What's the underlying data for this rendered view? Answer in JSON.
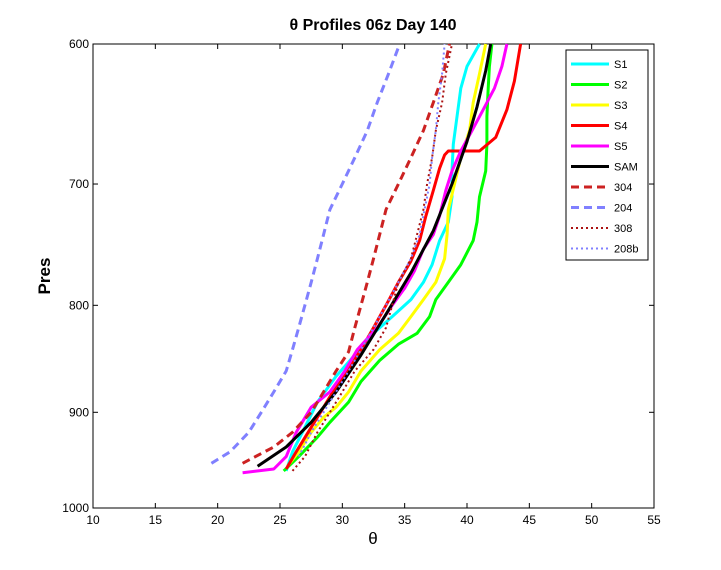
{
  "chart_data": {
    "type": "line",
    "title": "θ Profiles 06z Day 140",
    "xlabel": "θ",
    "ylabel": "Pres",
    "xlim": [
      10,
      55
    ],
    "ylim": [
      600,
      1000
    ],
    "y_reversed": true,
    "y_scale": "log",
    "xticks": [
      10,
      15,
      20,
      25,
      30,
      35,
      40,
      45,
      50,
      55
    ],
    "yticks": [
      600,
      700,
      800,
      900,
      1000
    ],
    "grid": false,
    "legend_position": "top-right",
    "series": [
      {
        "name": "S1",
        "color": "#00ffff",
        "style": "solid",
        "points": [
          [
            25.5,
            960
          ],
          [
            26,
            940
          ],
          [
            27,
            915
          ],
          [
            28,
            890
          ],
          [
            29.5,
            865
          ],
          [
            31,
            845
          ],
          [
            32.5,
            825
          ],
          [
            34,
            810
          ],
          [
            35.5,
            795
          ],
          [
            36.5,
            780
          ],
          [
            37.2,
            765
          ],
          [
            37.8,
            745
          ],
          [
            38.5,
            730
          ],
          [
            38.8,
            710
          ],
          [
            38.8,
            690
          ],
          [
            38.9,
            670
          ],
          [
            39.2,
            650
          ],
          [
            39.5,
            630
          ],
          [
            40,
            615
          ],
          [
            41,
            600
          ]
        ]
      },
      {
        "name": "S2",
        "color": "#00ff00",
        "style": "solid",
        "points": [
          [
            25.3,
            960
          ],
          [
            26.5,
            945
          ],
          [
            28,
            925
          ],
          [
            29,
            910
          ],
          [
            30.5,
            890
          ],
          [
            31.5,
            870
          ],
          [
            33,
            850
          ],
          [
            34.5,
            835
          ],
          [
            36,
            825
          ],
          [
            37,
            810
          ],
          [
            37.5,
            795
          ],
          [
            38.5,
            780
          ],
          [
            39.5,
            765
          ],
          [
            40.5,
            745
          ],
          [
            40.8,
            730
          ],
          [
            41,
            710
          ],
          [
            41.5,
            690
          ],
          [
            41.6,
            670
          ],
          [
            41.6,
            650
          ],
          [
            41.7,
            630
          ],
          [
            41.8,
            615
          ],
          [
            42,
            600
          ]
        ]
      },
      {
        "name": "S3",
        "color": "#ffff00",
        "style": "solid",
        "points": [
          [
            25.6,
            955
          ],
          [
            26.5,
            940
          ],
          [
            27.5,
            920
          ],
          [
            28.5,
            905
          ],
          [
            29.5,
            895
          ],
          [
            30.5,
            880
          ],
          [
            31.5,
            860
          ],
          [
            33,
            840
          ],
          [
            34.5,
            825
          ],
          [
            35.5,
            810
          ],
          [
            36.5,
            795
          ],
          [
            37.5,
            780
          ],
          [
            38.2,
            760
          ],
          [
            38.4,
            740
          ],
          [
            38.5,
            720
          ],
          [
            39,
            700
          ],
          [
            39.5,
            680
          ],
          [
            40.2,
            660
          ],
          [
            40.5,
            640
          ],
          [
            41,
            620
          ],
          [
            41.5,
            600
          ]
        ]
      },
      {
        "name": "S4",
        "color": "#ff0000",
        "style": "solid",
        "points": [
          [
            25.5,
            958
          ],
          [
            26.3,
            940
          ],
          [
            27.5,
            915
          ],
          [
            28.5,
            895
          ],
          [
            29.5,
            875
          ],
          [
            30.5,
            858
          ],
          [
            31.5,
            840
          ],
          [
            32.5,
            820
          ],
          [
            33.5,
            800
          ],
          [
            34.5,
            780
          ],
          [
            35.5,
            762
          ],
          [
            36.2,
            745
          ],
          [
            36.7,
            725
          ],
          [
            37.3,
            705
          ],
          [
            37.8,
            688
          ],
          [
            38.2,
            678
          ],
          [
            38.5,
            675
          ],
          [
            41,
            675
          ],
          [
            42.3,
            665
          ],
          [
            43.2,
            645
          ],
          [
            43.8,
            625
          ],
          [
            44.3,
            600
          ]
        ]
      },
      {
        "name": "S5",
        "color": "#ff00ff",
        "style": "solid",
        "points": [
          [
            22,
            962
          ],
          [
            24.5,
            958
          ],
          [
            25.5,
            945
          ],
          [
            26.3,
            920
          ],
          [
            27.5,
            895
          ],
          [
            29,
            880
          ],
          [
            30.2,
            860
          ],
          [
            31.2,
            840
          ],
          [
            32.8,
            820
          ],
          [
            34,
            800
          ],
          [
            35,
            785
          ],
          [
            35.8,
            770
          ],
          [
            36.5,
            752
          ],
          [
            37.3,
            740
          ],
          [
            37.8,
            725
          ],
          [
            38.3,
            705
          ],
          [
            38.8,
            690
          ],
          [
            39.5,
            675
          ],
          [
            40.4,
            660
          ],
          [
            41.3,
            645
          ],
          [
            42.2,
            630
          ],
          [
            42.8,
            615
          ],
          [
            43.2,
            600
          ]
        ]
      },
      {
        "name": "SAM",
        "color": "#000000",
        "style": "solid",
        "points": [
          [
            23.2,
            955
          ],
          [
            25.5,
            935
          ],
          [
            27.5,
            910
          ],
          [
            29.5,
            880
          ],
          [
            31.5,
            845
          ],
          [
            33.5,
            808
          ],
          [
            35.5,
            772
          ],
          [
            37.3,
            737
          ],
          [
            38.8,
            700
          ],
          [
            40,
            668
          ],
          [
            40.8,
            643
          ],
          [
            41.5,
            618
          ],
          [
            41.9,
            600
          ]
        ]
      },
      {
        "name": "304",
        "color": "#cc2222",
        "style": "dashed",
        "points": [
          [
            22,
            952
          ],
          [
            24.5,
            935
          ],
          [
            26,
            920
          ],
          [
            27.5,
            900
          ],
          [
            28.5,
            880
          ],
          [
            29.5,
            860
          ],
          [
            30.5,
            842
          ],
          [
            31,
            820
          ],
          [
            31.5,
            800
          ],
          [
            32,
            780
          ],
          [
            32.5,
            760
          ],
          [
            33,
            740
          ],
          [
            33.5,
            720
          ],
          [
            34.5,
            700
          ],
          [
            35.5,
            680
          ],
          [
            36.5,
            660
          ],
          [
            37.3,
            640
          ],
          [
            38.1,
            620
          ],
          [
            38.6,
            600
          ]
        ]
      },
      {
        "name": "204",
        "color": "#8080ff",
        "style": "dashed",
        "points": [
          [
            19.5,
            952
          ],
          [
            21,
            940
          ],
          [
            22.5,
            920
          ],
          [
            23.5,
            900
          ],
          [
            24.5,
            880
          ],
          [
            25.5,
            860
          ],
          [
            26,
            840
          ],
          [
            26.5,
            820
          ],
          [
            27,
            800
          ],
          [
            27.5,
            780
          ],
          [
            28,
            760
          ],
          [
            28.5,
            740
          ],
          [
            29,
            720
          ],
          [
            30,
            700
          ],
          [
            31,
            680
          ],
          [
            32,
            660
          ],
          [
            32.8,
            640
          ],
          [
            33.7,
            620
          ],
          [
            34.6,
            600
          ]
        ]
      },
      {
        "name": "308",
        "color": "#aa1111",
        "style": "dotted",
        "points": [
          [
            26,
            960
          ],
          [
            27,
            945
          ],
          [
            28,
            920
          ],
          [
            29,
            900
          ],
          [
            30,
            880
          ],
          [
            31,
            860
          ],
          [
            32.5,
            840
          ],
          [
            33.5,
            820
          ],
          [
            34,
            800
          ],
          [
            34.5,
            780
          ],
          [
            35.5,
            760
          ],
          [
            36,
            740
          ],
          [
            36.5,
            720
          ],
          [
            36.8,
            700
          ],
          [
            37.2,
            680
          ],
          [
            37.5,
            660
          ],
          [
            38,
            640
          ],
          [
            38.3,
            620
          ],
          [
            38.8,
            600
          ]
        ]
      },
      {
        "name": "208b",
        "color": "#8080ff",
        "style": "dotted",
        "points": [
          [
            26.5,
            945
          ],
          [
            27.5,
            920
          ],
          [
            28.5,
            900
          ],
          [
            29.5,
            880
          ],
          [
            30.5,
            860
          ],
          [
            31.5,
            840
          ],
          [
            32.5,
            820
          ],
          [
            33.5,
            800
          ],
          [
            34.5,
            780
          ],
          [
            35.5,
            760
          ],
          [
            36.2,
            740
          ],
          [
            36.6,
            720
          ],
          [
            37,
            700
          ],
          [
            37.2,
            680
          ],
          [
            37.5,
            660
          ],
          [
            37.7,
            640
          ],
          [
            38,
            620
          ],
          [
            38.2,
            600
          ]
        ]
      }
    ]
  }
}
